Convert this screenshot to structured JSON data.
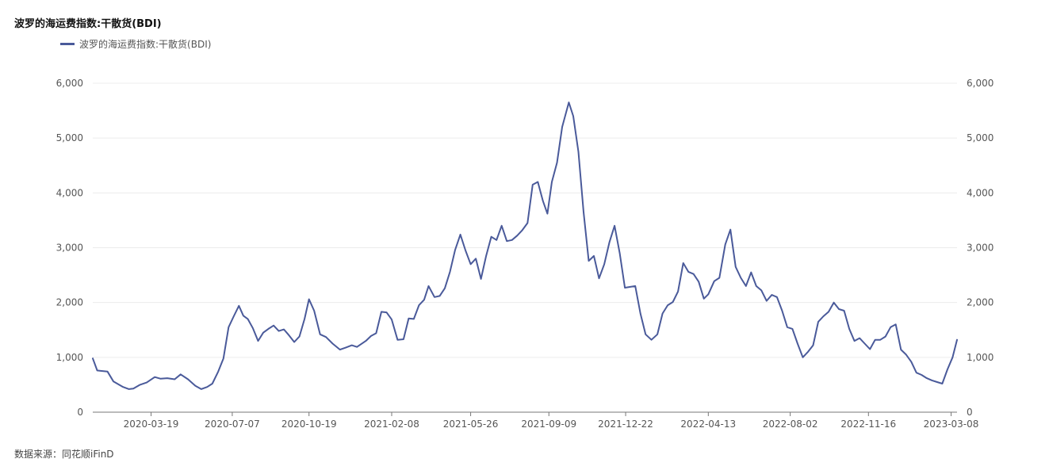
{
  "title": "波罗的海运费指数:干散货(BDI)",
  "source": "数据来源：同花顺iFinD",
  "colors": {
    "series": "#4a5a9a",
    "grid": "#ececec",
    "axis": "#777777"
  },
  "chart_data": {
    "type": "line",
    "title": "波罗的海运费指数:干散货(BDI)",
    "legend_position": "top-left",
    "grid": true,
    "y_axes": "left-and-right",
    "xlabel": "",
    "ylabel": "",
    "ylim": [
      0,
      6000
    ],
    "y_ticks": [
      0,
      1000,
      2000,
      3000,
      4000,
      5000,
      6000
    ],
    "y_tick_labels": [
      "0",
      "1,000",
      "2,000",
      "3,000",
      "4,000",
      "5,000",
      "6,000"
    ],
    "x_range": [
      "2019-12-31",
      "2023-03-16"
    ],
    "x_tick_labels": [
      "2020-03-19",
      "2020-07-07",
      "2020-10-19",
      "2021-02-08",
      "2021-05-26",
      "2021-09-09",
      "2021-12-22",
      "2022-04-13",
      "2022-08-02",
      "2022-11-16",
      "2023-03-08"
    ],
    "series": [
      {
        "name": "波罗的海运费指数:干散货(BDI)",
        "x": [
          "2019-12-31",
          "2020-01-06",
          "2020-01-20",
          "2020-01-28",
          "2020-02-10",
          "2020-02-18",
          "2020-02-24",
          "2020-03-04",
          "2020-03-13",
          "2020-03-24",
          "2020-04-01",
          "2020-04-10",
          "2020-04-20",
          "2020-04-28",
          "2020-05-08",
          "2020-05-18",
          "2020-05-26",
          "2020-06-03",
          "2020-06-10",
          "2020-06-18",
          "2020-06-25",
          "2020-07-02",
          "2020-07-09",
          "2020-07-16",
          "2020-07-22",
          "2020-07-28",
          "2020-08-04",
          "2020-08-11",
          "2020-08-18",
          "2020-08-25",
          "2020-09-01",
          "2020-09-08",
          "2020-09-15",
          "2020-09-22",
          "2020-09-29",
          "2020-10-06",
          "2020-10-13",
          "2020-10-19",
          "2020-10-26",
          "2020-11-03",
          "2020-11-11",
          "2020-11-20",
          "2020-11-30",
          "2020-12-08",
          "2020-12-16",
          "2020-12-23",
          "2021-01-04",
          "2021-01-11",
          "2021-01-18",
          "2021-01-25",
          "2021-02-01",
          "2021-02-08",
          "2021-02-16",
          "2021-02-24",
          "2021-03-03",
          "2021-03-10",
          "2021-03-17",
          "2021-03-24",
          "2021-03-30",
          "2021-04-07",
          "2021-04-14",
          "2021-04-21",
          "2021-04-28",
          "2021-05-05",
          "2021-05-12",
          "2021-05-19",
          "2021-05-26",
          "2021-06-02",
          "2021-06-09",
          "2021-06-16",
          "2021-06-23",
          "2021-06-30",
          "2021-07-07",
          "2021-07-14",
          "2021-07-21",
          "2021-07-28",
          "2021-08-04",
          "2021-08-11",
          "2021-08-18",
          "2021-08-25",
          "2021-09-01",
          "2021-09-07",
          "2021-09-13",
          "2021-09-20",
          "2021-09-27",
          "2021-10-06",
          "2021-10-12",
          "2021-10-19",
          "2021-10-26",
          "2021-11-02",
          "2021-11-09",
          "2021-11-16",
          "2021-11-23",
          "2021-11-30",
          "2021-12-07",
          "2021-12-14",
          "2021-12-21",
          "2022-01-04",
          "2022-01-11",
          "2022-01-18",
          "2022-01-26",
          "2022-02-03",
          "2022-02-10",
          "2022-02-17",
          "2022-02-24",
          "2022-03-03",
          "2022-03-10",
          "2022-03-17",
          "2022-03-24",
          "2022-03-31",
          "2022-04-07",
          "2022-04-13",
          "2022-04-21",
          "2022-04-28",
          "2022-05-06",
          "2022-05-13",
          "2022-05-20",
          "2022-05-27",
          "2022-06-03",
          "2022-06-10",
          "2022-06-17",
          "2022-06-24",
          "2022-07-01",
          "2022-07-08",
          "2022-07-15",
          "2022-07-22",
          "2022-07-29",
          "2022-08-05",
          "2022-08-12",
          "2022-08-19",
          "2022-08-26",
          "2022-09-02",
          "2022-09-09",
          "2022-09-16",
          "2022-09-23",
          "2022-09-30",
          "2022-10-07",
          "2022-10-14",
          "2022-10-21",
          "2022-10-28",
          "2022-11-04",
          "2022-11-11",
          "2022-11-18",
          "2022-11-25",
          "2022-12-02",
          "2022-12-09",
          "2022-12-16",
          "2022-12-23",
          "2022-12-30",
          "2023-01-06",
          "2023-01-13",
          "2023-01-20",
          "2023-01-27",
          "2023-02-03",
          "2023-02-10",
          "2023-02-17",
          "2023-02-24",
          "2023-03-03",
          "2023-03-10",
          "2023-03-16"
        ],
        "values": [
          980,
          760,
          740,
          560,
          460,
          420,
          430,
          500,
          540,
          640,
          610,
          620,
          600,
          690,
          600,
          480,
          420,
          460,
          520,
          740,
          980,
          1550,
          1750,
          1940,
          1760,
          1700,
          1530,
          1300,
          1450,
          1520,
          1580,
          1480,
          1510,
          1400,
          1280,
          1380,
          1700,
          2060,
          1850,
          1420,
          1370,
          1250,
          1140,
          1180,
          1220,
          1190,
          1300,
          1390,
          1440,
          1830,
          1820,
          1690,
          1320,
          1330,
          1710,
          1700,
          1950,
          2050,
          2300,
          2100,
          2120,
          2260,
          2560,
          2960,
          3240,
          2950,
          2700,
          2800,
          2430,
          2850,
          3200,
          3140,
          3400,
          3120,
          3140,
          3220,
          3320,
          3450,
          4150,
          4200,
          3850,
          3620,
          4200,
          4550,
          5200,
          5650,
          5400,
          4750,
          3650,
          2760,
          2850,
          2440,
          2700,
          3100,
          3400,
          2900,
          2270,
          2300,
          1800,
          1420,
          1320,
          1420,
          1800,
          1950,
          2010,
          2200,
          2720,
          2560,
          2520,
          2380,
          2070,
          2150,
          2390,
          2450,
          3060,
          3330,
          2650,
          2450,
          2300,
          2550,
          2300,
          2220,
          2030,
          2140,
          2100,
          1850,
          1550,
          1520,
          1250,
          1000,
          1100,
          1220,
          1650,
          1750,
          1830,
          2000,
          1880,
          1850,
          1520,
          1300,
          1350,
          1250,
          1150,
          1320,
          1320,
          1380,
          1550,
          1600,
          1140,
          1050,
          920,
          720,
          680,
          620,
          580,
          550,
          520,
          780,
          1000,
          1320
        ]
      }
    ]
  }
}
